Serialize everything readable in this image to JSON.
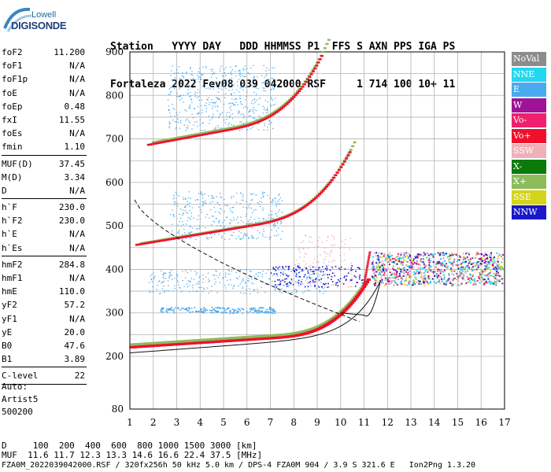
{
  "logo": {
    "line1": "Lowell",
    "line2": "DIGISONDE"
  },
  "header": {
    "row1": "Station   YYYY DAY   DDD HHMMSS P1  FFS S AXN PPS IGA PS",
    "row2": "Fortaleza 2022 Fev08 039 042000 RSF     1 714 100 10+ 11"
  },
  "params_group1": [
    {
      "k": "foF2",
      "v": "11.200"
    },
    {
      "k": "foF1",
      "v": "N/A"
    },
    {
      "k": "foF1p",
      "v": "N/A"
    },
    {
      "k": "foE",
      "v": "N/A"
    },
    {
      "k": "foEp",
      "v": "0.48"
    },
    {
      "k": "fxI",
      "v": "11.55"
    },
    {
      "k": "foEs",
      "v": "N/A"
    },
    {
      "k": "fmin",
      "v": "1.10"
    }
  ],
  "params_group2": [
    {
      "k": "MUF(D)",
      "v": "37.45"
    },
    {
      "k": "M(D)",
      "v": "3.34"
    },
    {
      "k": "D",
      "v": "N/A"
    }
  ],
  "params_group3": [
    {
      "k": "h`F",
      "v": "230.0"
    },
    {
      "k": "h`F2",
      "v": "230.0"
    },
    {
      "k": "h`E",
      "v": "N/A"
    },
    {
      "k": "h`Es",
      "v": "N/A"
    }
  ],
  "params_group4": [
    {
      "k": "hmF2",
      "v": "284.8"
    },
    {
      "k": "hmF1",
      "v": "N/A"
    },
    {
      "k": "hmE",
      "v": "110.0"
    },
    {
      "k": "yF2",
      "v": "57.2"
    },
    {
      "k": "yF1",
      "v": "N/A"
    },
    {
      "k": "yE",
      "v": "20.0"
    },
    {
      "k": "B0",
      "v": "47.6"
    },
    {
      "k": "B1",
      "v": "3.89"
    }
  ],
  "params_group5": [
    {
      "k": "C-level",
      "v": "22"
    }
  ],
  "auto": {
    "l1": "Auto:",
    "l2": "Artist5",
    "l3": "500200"
  },
  "legend": [
    {
      "label": "NoVal",
      "color": "#8c8c8c"
    },
    {
      "label": "NNE",
      "color": "#22d8f0"
    },
    {
      "label": "E",
      "color": "#4aaaf0"
    },
    {
      "label": "W",
      "color": "#a01298"
    },
    {
      "label": "Vo-",
      "color": "#f0206c"
    },
    {
      "label": "Vo+",
      "color": "#f0102c"
    },
    {
      "label": "SSW",
      "color": "#f0b0b8"
    },
    {
      "label": "X-",
      "color": "#0a7a0a"
    },
    {
      "label": "X+",
      "color": "#8cbc5c"
    },
    {
      "label": "SSE",
      "color": "#d4d41a"
    },
    {
      "label": "NNW",
      "color": "#1a18c8"
    }
  ],
  "chart_data": {
    "type": "scatter",
    "x_ticks": [
      "1",
      "2",
      "3",
      "4",
      "5",
      "6",
      "7",
      "8",
      "9",
      "10",
      "11",
      "12",
      "13",
      "14",
      "15",
      "16",
      "17"
    ],
    "y_ticks": [
      "80",
      "200",
      "300",
      "400",
      "500",
      "600",
      "700",
      "800",
      "900"
    ],
    "xlim": [
      1,
      17
    ],
    "ylim_labels": [
      80,
      900
    ],
    "traces": [
      {
        "name": "Vo+",
        "x": [
          1.1,
          2,
          3,
          4,
          5,
          6,
          7,
          8,
          9,
          10,
          10.8,
          11.1
        ],
        "y": [
          225,
          232,
          238,
          243,
          250,
          256,
          266,
          278,
          292,
          312,
          345,
          380
        ]
      },
      {
        "name": "X+",
        "x": [
          2,
          3,
          4,
          5,
          6,
          7,
          8,
          9,
          10,
          11,
          11.4
        ],
        "y": [
          234,
          240,
          244,
          251,
          258,
          267,
          279,
          293,
          314,
          350,
          395
        ]
      }
    ]
  },
  "footer": {
    "line1": "D     100  200  400  600  800 1000 1500 3000 [km]",
    "line2": "MUF  11.6 11.7 12.3 13.3 14.6 16.6 22.4 37.5 [MHz]",
    "line3": "FZA0M_2022039042000.RSF / 320fx256h 50 kHz 5.0 km / DPS-4 FZA0M 904 / 3.9 S 321.6 E   Ion2Png 1.3.20"
  }
}
